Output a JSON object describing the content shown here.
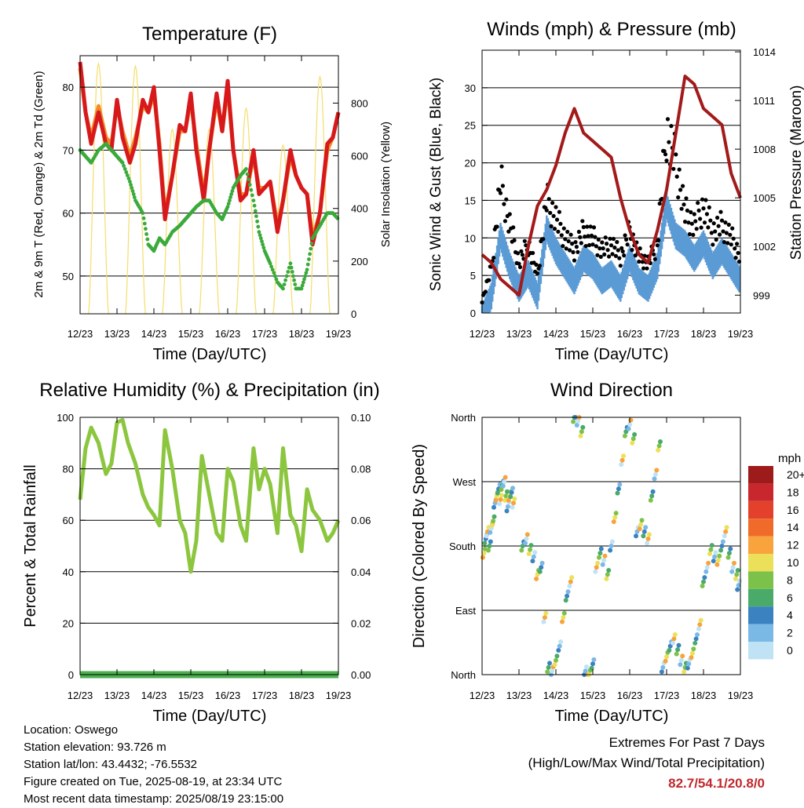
{
  "x_ticks": [
    "12/23",
    "13/23",
    "14/23",
    "15/23",
    "16/23",
    "17/23",
    "18/23",
    "19/23"
  ],
  "chart_data": [
    {
      "id": "temperature",
      "type": "line",
      "title": "Temperature (F)",
      "xlabel": "Time (Day/UTC)",
      "ylabel": "2m & 9m T (Red, Orange) & 2m Td (Green)",
      "y2label": "Solar Insolation (Yellow)",
      "ylim": [
        44,
        85
      ],
      "y_ticks": [
        "50",
        "60",
        "70",
        "80"
      ],
      "y2lim": [
        0,
        980
      ],
      "y2_ticks": [
        "0",
        "200",
        "400",
        "600",
        "800"
      ],
      "x_days": [
        0,
        0.15,
        0.3,
        0.5,
        0.7,
        0.85,
        1,
        1.15,
        1.35,
        1.5,
        1.7,
        1.85,
        2,
        2.15,
        2.3,
        2.5,
        2.7,
        2.85,
        3,
        3.15,
        3.35,
        3.5,
        3.7,
        3.85,
        4,
        4.15,
        4.35,
        4.5,
        4.7,
        4.85,
        5,
        5.15,
        5.35,
        5.5,
        5.7,
        5.85,
        6,
        6.15,
        6.3,
        6.5,
        6.7,
        6.85,
        7
      ],
      "series": [
        {
          "name": "2m T",
          "color": "#d7191c",
          "values": [
            84,
            76,
            71,
            76,
            71,
            70,
            78,
            72,
            68,
            71,
            78,
            76,
            80,
            70,
            59,
            66,
            74,
            73,
            79,
            70,
            62,
            70,
            79,
            73,
            81,
            70,
            62,
            63,
            70,
            63,
            64,
            65,
            57,
            62,
            70,
            66,
            64,
            63,
            55,
            60,
            71,
            72,
            76
          ]
        },
        {
          "name": "9m T",
          "color": "#f28c28",
          "values": [
            83,
            76,
            72,
            77,
            72,
            71,
            77,
            73,
            69,
            72,
            77,
            76,
            79,
            71,
            60,
            66,
            73,
            73,
            78,
            71,
            63,
            70,
            78,
            73,
            80,
            70,
            63,
            63,
            69,
            64,
            64,
            65,
            58,
            62,
            69,
            66,
            64,
            63,
            56,
            60,
            70,
            72,
            76
          ]
        },
        {
          "name": "2m Td",
          "color": "#3aaa3a",
          "values": [
            70,
            69,
            68,
            70,
            71,
            70,
            69,
            68,
            65,
            62,
            60,
            55,
            54,
            56,
            55,
            57,
            58,
            59,
            60,
            61,
            62,
            62,
            60,
            59,
            61,
            64,
            66,
            67,
            62,
            57,
            54,
            52,
            49,
            48,
            52,
            48,
            48,
            51,
            56,
            58,
            60,
            60,
            59
          ]
        },
        {
          "name": "Solar Insolation",
          "color": "#f5dd6a",
          "axis": "y2",
          "peaks": [
            0.5,
            1.5,
            2.5,
            3.5,
            4.5,
            5.5,
            6.5
          ],
          "peak_values": [
            950,
            940,
            700,
            700,
            780,
            640,
            900
          ]
        }
      ]
    },
    {
      "id": "winds",
      "type": "line",
      "title": "Winds (mph) & Pressure (mb)",
      "xlabel": "Time (Day/UTC)",
      "ylabel": "Sonic Wind & Gust (Blue, Black)",
      "y2label": "Station Pressure (Maroon)",
      "ylim": [
        0,
        35
      ],
      "y_ticks": [
        "0",
        "5",
        "10",
        "15",
        "20",
        "25",
        "30"
      ],
      "y2lim": [
        997.9,
        1014.1
      ],
      "y2_ticks": [
        "999",
        "1002",
        "1005",
        "1008",
        "1011",
        "1014"
      ],
      "x_days": [
        0,
        0.25,
        0.5,
        0.75,
        1,
        1.25,
        1.5,
        1.75,
        2,
        2.25,
        2.5,
        2.75,
        3,
        3.25,
        3.5,
        3.75,
        4,
        4.25,
        4.5,
        4.75,
        5,
        5.25,
        5.5,
        5.75,
        6,
        6.25,
        6.5,
        6.75,
        7
      ],
      "series": [
        {
          "name": "Sonic Wind",
          "color": "#5b9bd5",
          "values": [
            1,
            4,
            12,
            8,
            5,
            7,
            4,
            13,
            10,
            8,
            6,
            9,
            8,
            6,
            7,
            5,
            9,
            6,
            5,
            8,
            16,
            12,
            11,
            9,
            11,
            8,
            10,
            8,
            6
          ]
        },
        {
          "name": "Gust",
          "color": "#000000",
          "values": [
            2,
            7,
            21,
            14,
            8,
            11,
            6,
            18,
            15,
            12,
            10,
            13,
            12,
            10,
            11,
            9,
            13,
            9,
            8,
            11,
            29,
            24,
            16,
            14,
            17,
            13,
            14,
            12,
            9
          ]
        },
        {
          "name": "Station Pressure",
          "color": "#a31a1a",
          "axis": "y2",
          "values": [
            1001.5,
            1001,
            1000,
            999.5,
            999,
            1002,
            1004.5,
            1005.5,
            1007,
            1009,
            1010.5,
            1009,
            1008.5,
            1008,
            1007.5,
            1005,
            1003,
            1001.5,
            1001,
            1003,
            1005.5,
            1009,
            1012.5,
            1012,
            1010.5,
            1010,
            1009.5,
            1006.5,
            1005
          ]
        }
      ]
    },
    {
      "id": "humidity",
      "type": "line",
      "title": "Relative Humidity (%) & Precipitation (in)",
      "xlabel": "Time (Day/UTC)",
      "ylabel": "Percent & Total Rainfall",
      "ylim": [
        0,
        100
      ],
      "y_ticks": [
        "0",
        "20",
        "40",
        "60",
        "80",
        "100"
      ],
      "y2lim": [
        0,
        0.1
      ],
      "y2_ticks": [
        "0.00",
        "0.02",
        "0.04",
        "0.06",
        "0.08",
        "0.10"
      ],
      "x_days": [
        0,
        0.15,
        0.3,
        0.5,
        0.7,
        0.85,
        1,
        1.15,
        1.3,
        1.5,
        1.7,
        1.85,
        2,
        2.15,
        2.3,
        2.5,
        2.7,
        2.85,
        3,
        3.15,
        3.3,
        3.5,
        3.7,
        3.85,
        4,
        4.15,
        4.35,
        4.5,
        4.7,
        4.85,
        5,
        5.15,
        5.35,
        5.5,
        5.7,
        5.85,
        6,
        6.15,
        6.3,
        6.5,
        6.7,
        6.85,
        7
      ],
      "series": [
        {
          "name": "Relative Humidity",
          "color": "#8cc63f",
          "values": [
            68,
            88,
            96,
            90,
            78,
            82,
            98,
            99,
            90,
            82,
            70,
            65,
            62,
            58,
            95,
            80,
            60,
            55,
            40,
            52,
            85,
            70,
            55,
            52,
            80,
            75,
            58,
            52,
            88,
            72,
            80,
            74,
            55,
            88,
            62,
            58,
            48,
            72,
            64,
            60,
            52,
            55,
            60
          ]
        },
        {
          "name": "Total Precipitation",
          "color": "#4caf50",
          "axis": "y2",
          "values": [
            0,
            0,
            0,
            0,
            0,
            0,
            0,
            0,
            0,
            0,
            0,
            0,
            0,
            0,
            0,
            0,
            0,
            0,
            0,
            0,
            0,
            0,
            0,
            0,
            0,
            0,
            0,
            0,
            0,
            0,
            0,
            0,
            0,
            0,
            0,
            0,
            0,
            0,
            0,
            0,
            0,
            0,
            0
          ]
        }
      ]
    },
    {
      "id": "direction",
      "type": "scatter",
      "title": "Wind Direction",
      "xlabel": "Time (Day/UTC)",
      "ylabel": "Direction (Colored By Speed)",
      "y_ticks": [
        "North",
        "East",
        "South",
        "West",
        "North"
      ],
      "ylim": [
        0,
        360
      ],
      "legend_title": "mph",
      "legend_labels": [
        "20+",
        "18",
        "16",
        "14",
        "12",
        "10",
        "8",
        "6",
        "4",
        "2",
        "0"
      ],
      "legend_colors": [
        "#9e1b1b",
        "#c8282d",
        "#e3412b",
        "#f06b2a",
        "#f8a33c",
        "#ece05a",
        "#7cc24a",
        "#4aaa6a",
        "#3a82c0",
        "#7ab8e6",
        "#bfe2f5"
      ],
      "points": [
        [
          0.05,
          170
        ],
        [
          0.1,
          190
        ],
        [
          0.15,
          200
        ],
        [
          0.2,
          180
        ],
        [
          0.25,
          205
        ],
        [
          0.3,
          215
        ],
        [
          0.35,
          240
        ],
        [
          0.4,
          250
        ],
        [
          0.45,
          260
        ],
        [
          0.5,
          245
        ],
        [
          0.55,
          265
        ],
        [
          0.6,
          270
        ],
        [
          0.65,
          250
        ],
        [
          0.7,
          235
        ],
        [
          0.75,
          250
        ],
        [
          0.8,
          255
        ],
        [
          0.85,
          240
        ],
        [
          1.1,
          180
        ],
        [
          1.2,
          190
        ],
        [
          1.3,
          175
        ],
        [
          1.4,
          165
        ],
        [
          1.5,
          140
        ],
        [
          1.6,
          150
        ],
        [
          1.7,
          80
        ],
        [
          1.8,
          10
        ],
        [
          1.9,
          5
        ],
        [
          2.0,
          20
        ],
        [
          2.1,
          40
        ],
        [
          2.2,
          80
        ],
        [
          2.3,
          110
        ],
        [
          2.4,
          130
        ],
        [
          2.5,
          360
        ],
        [
          2.6,
          355
        ],
        [
          2.7,
          340
        ],
        [
          2.8,
          5
        ],
        [
          2.9,
          0
        ],
        [
          3.0,
          15
        ],
        [
          3.1,
          150
        ],
        [
          3.2,
          170
        ],
        [
          3.3,
          160
        ],
        [
          3.4,
          140
        ],
        [
          3.5,
          180
        ],
        [
          3.6,
          220
        ],
        [
          3.7,
          260
        ],
        [
          3.8,
          300
        ],
        [
          3.9,
          340
        ],
        [
          4.0,
          350
        ],
        [
          4.1,
          330
        ],
        [
          4.2,
          200
        ],
        [
          4.3,
          210
        ],
        [
          4.4,
          200
        ],
        [
          4.5,
          190
        ],
        [
          4.6,
          250
        ],
        [
          4.7,
          280
        ],
        [
          4.8,
          320
        ],
        [
          4.9,
          10
        ],
        [
          5.0,
          25
        ],
        [
          5.1,
          40
        ],
        [
          5.2,
          50
        ],
        [
          5.3,
          35
        ],
        [
          5.4,
          20
        ],
        [
          5.5,
          10
        ],
        [
          5.6,
          15
        ],
        [
          5.7,
          30
        ],
        [
          5.8,
          50
        ],
        [
          5.9,
          70
        ],
        [
          6.0,
          130
        ],
        [
          6.1,
          150
        ],
        [
          6.2,
          175
        ],
        [
          6.3,
          165
        ],
        [
          6.4,
          160
        ],
        [
          6.5,
          180
        ],
        [
          6.6,
          200
        ],
        [
          6.7,
          170
        ],
        [
          6.8,
          150
        ],
        [
          6.9,
          140
        ],
        [
          6.95,
          125
        ]
      ]
    }
  ],
  "info": {
    "location": "Location: Oswego",
    "elevation": "Station elevation: 93.726 m",
    "latlon": "Station lat/lon: 43.4432; -76.5532",
    "created": "Figure created on Tue, 2025-08-19, at 23:34 UTC",
    "recent": "Most recent data timestamp: 2025/08/19 23:15:00"
  },
  "extremes": {
    "title": "Extremes For Past 7 Days",
    "subtitle": "(High/Low/Max Wind/Total Precipitation)",
    "values": "82.7/54.1/20.8/0"
  }
}
